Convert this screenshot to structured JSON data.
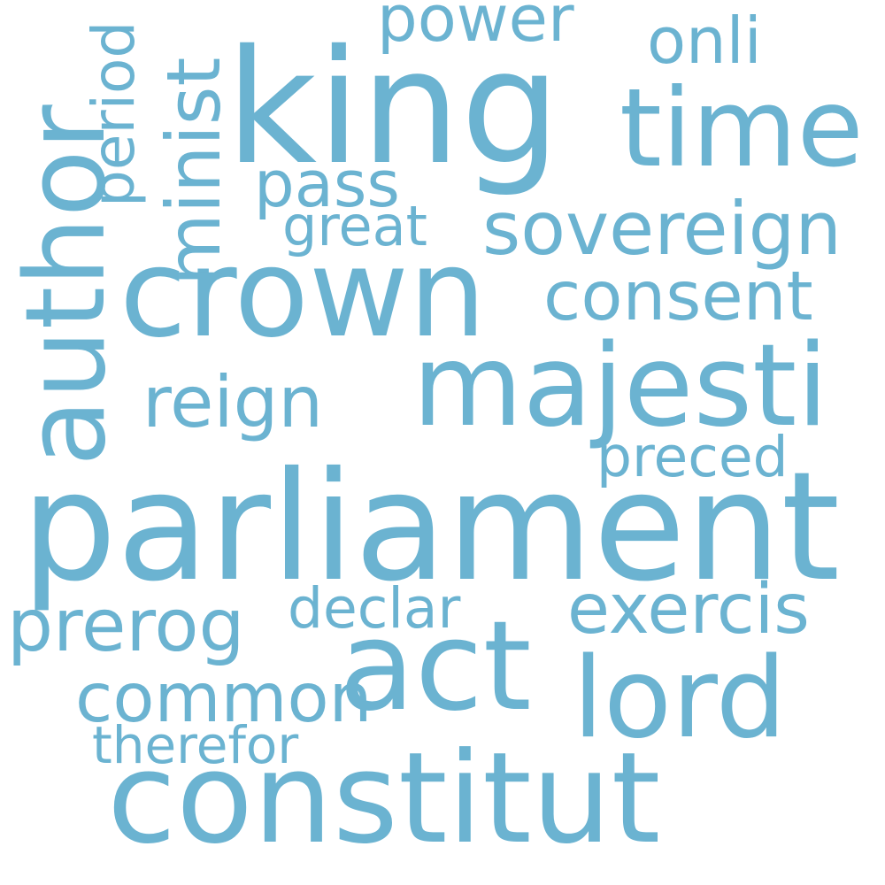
{
  "word_cloud": {
    "background": "#ffffff",
    "word_color": "#6bb3d1",
    "words": {
      "parliament": "parliament",
      "king": "king",
      "crown": "crown",
      "constitut": "constitut",
      "majesti": "majesti",
      "act": "act",
      "time": "time",
      "lord": "lord",
      "author": "author",
      "sovereign": "sovereign",
      "exercis": "exercis",
      "prerog": "prerog",
      "common": "common",
      "consent": "consent",
      "reign": "reign",
      "minist": "minist",
      "pass": "pass",
      "power": "power",
      "onli": "onli",
      "preced": "preced",
      "declar": "declar",
      "great": "great",
      "therefor": "therefor",
      "period": "period"
    },
    "vertical_words": [
      "author",
      "minist",
      "period"
    ]
  }
}
